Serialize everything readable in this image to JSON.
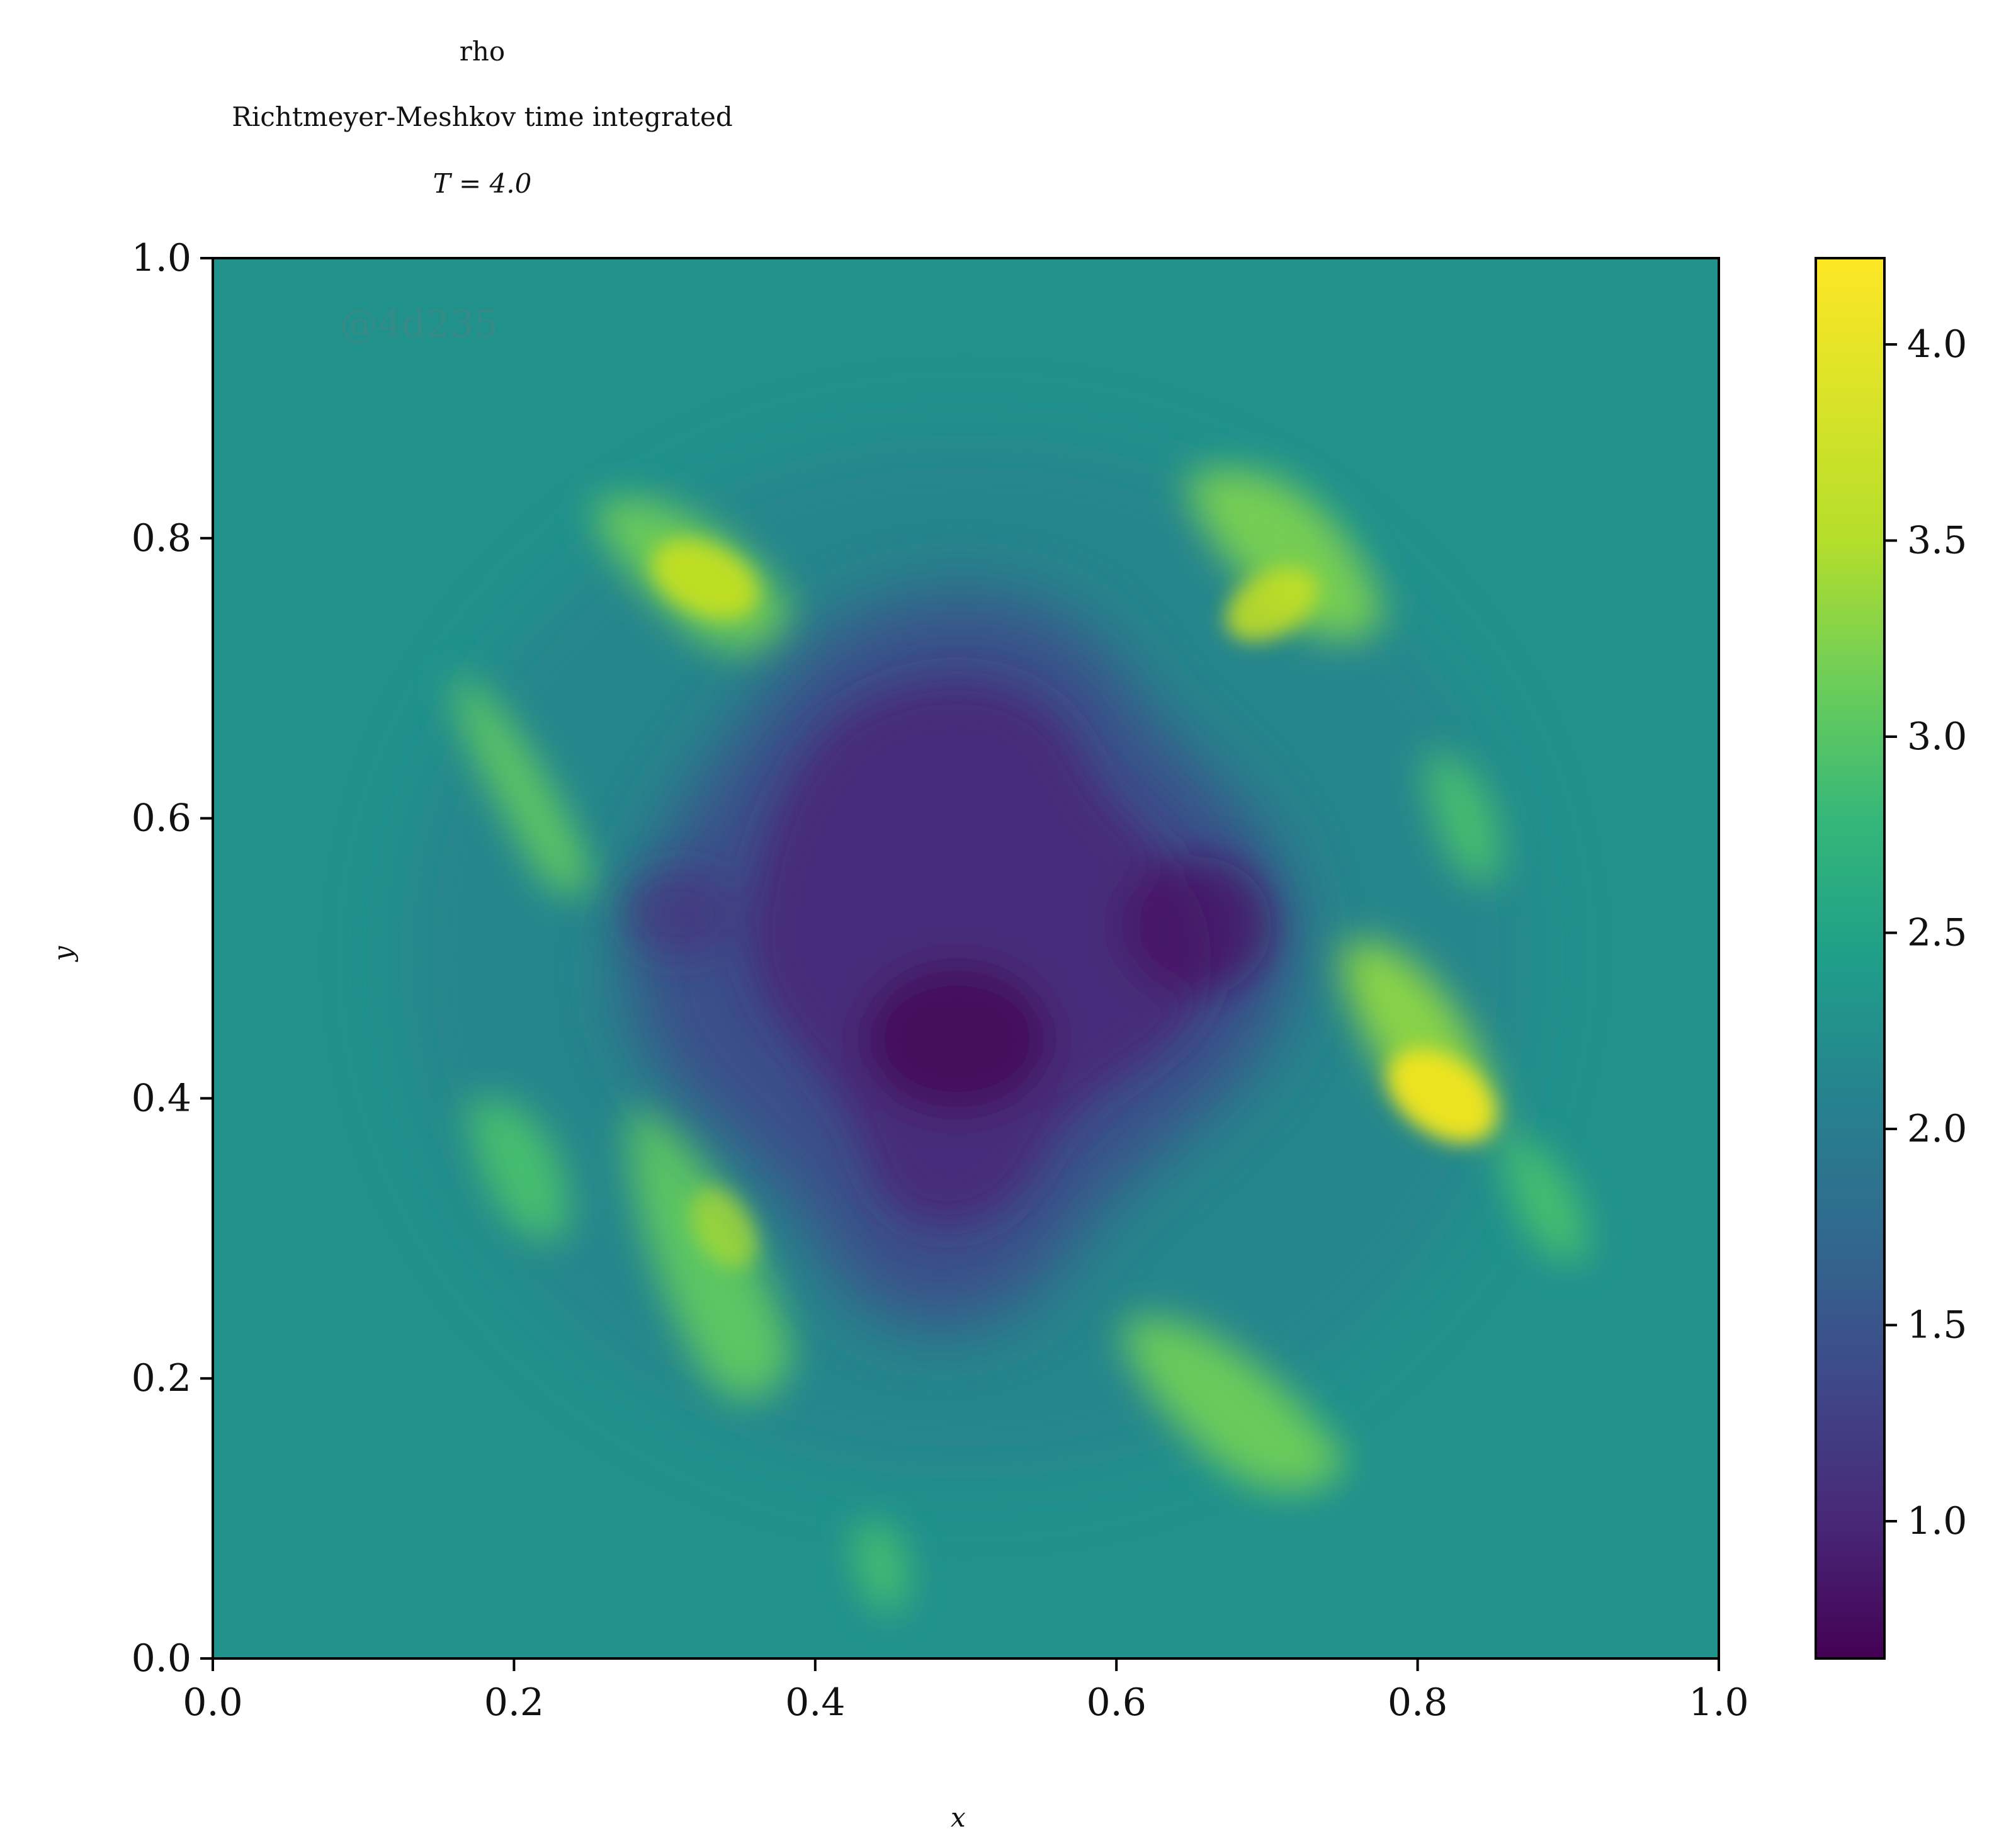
{
  "chart_data": {
    "type": "heatmap",
    "title_lines": [
      "rho",
      "Richtmeyer-Meshkov time integrated",
      "T = 4.0"
    ],
    "xlabel": "x",
    "ylabel": "y",
    "xlim": [
      0.0,
      1.0
    ],
    "ylim": [
      0.0,
      1.0
    ],
    "x_ticks": [
      "0.0",
      "0.2",
      "0.4",
      "0.6",
      "0.8",
      "1.0"
    ],
    "y_ticks": [
      "0.0",
      "0.2",
      "0.4",
      "0.6",
      "0.8",
      "1.0"
    ],
    "colorbar": {
      "colormap": "viridis",
      "range": [
        0.65,
        4.22
      ],
      "ticks": [
        "1.0",
        "1.5",
        "2.0",
        "2.5",
        "3.0",
        "3.5",
        "4.0"
      ]
    },
    "watermark": "@4d235",
    "colors": {
      "background_field": "#21918c",
      "low": "#440154",
      "high": "#fde725"
    }
  }
}
